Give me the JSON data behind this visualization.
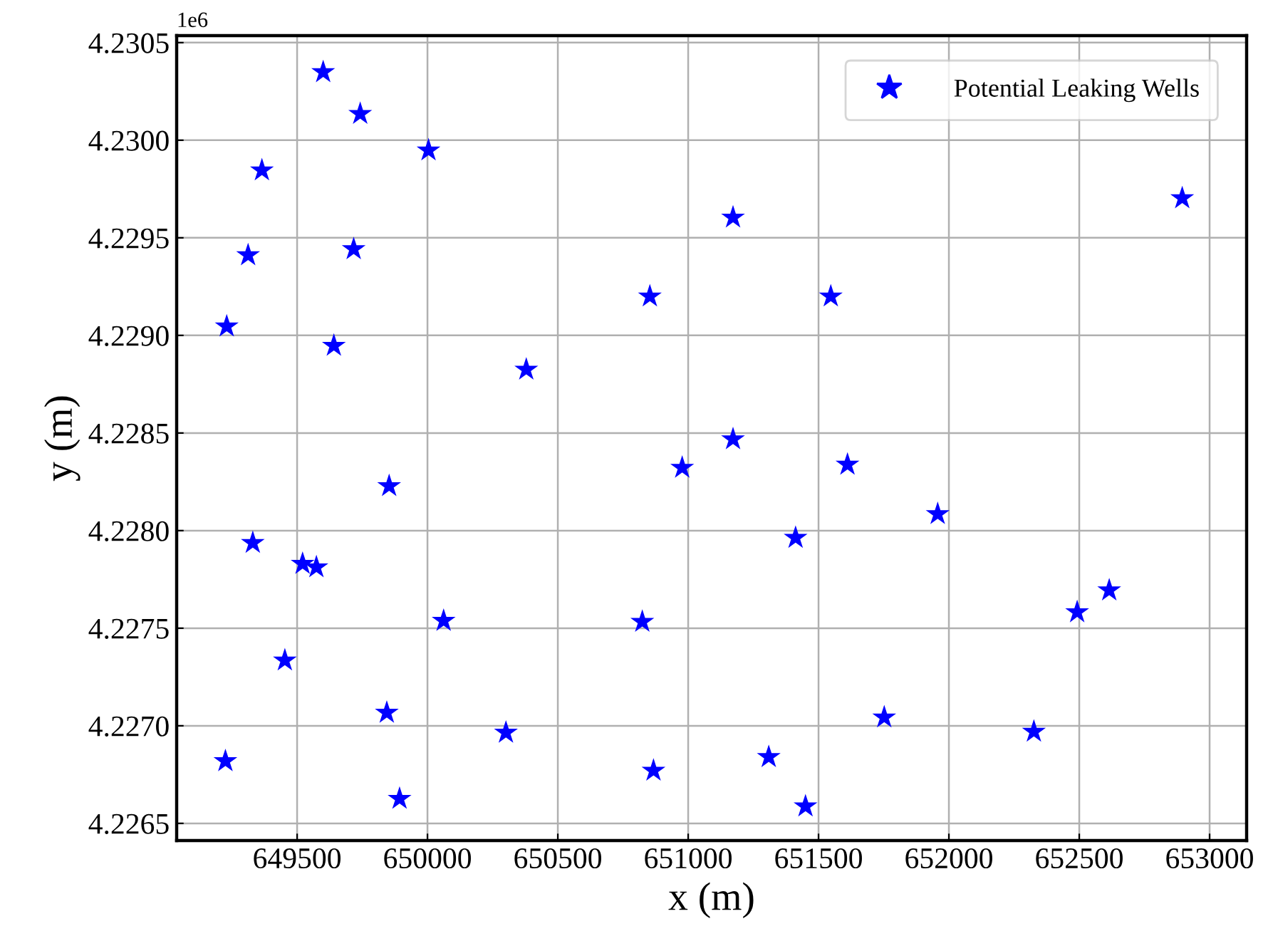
{
  "chart_data": {
    "type": "scatter",
    "xlabel": "x (m)",
    "ylabel": "y (m)",
    "annotations": [
      "1e6"
    ],
    "series": [
      {
        "name": "Potential Leaking Wells",
        "color": "#0000ff",
        "marker": "star",
        "x": [
          649600,
          649742,
          650004,
          649365,
          649312,
          649717,
          649230,
          649641,
          650379,
          650853,
          651172,
          651172,
          650977,
          649853,
          649330,
          649521,
          649574,
          650062,
          650824,
          649453,
          649844,
          650301,
          649225,
          649893,
          650867,
          651547,
          652895,
          651611,
          651957,
          651412,
          652615,
          652492,
          651752,
          652326,
          651309,
          651450
        ],
        "values": [
          4.230349,
          4.230135,
          4.229948,
          4.229846,
          4.229411,
          4.229442,
          4.229046,
          4.228947,
          4.228825,
          4.2292,
          4.229604,
          4.228468,
          4.228322,
          4.228228,
          4.227937,
          4.22783,
          4.227812,
          4.227538,
          4.227533,
          4.227335,
          4.227067,
          4.226965,
          4.226819,
          4.226626,
          4.22677,
          4.2292,
          4.229703,
          4.228338,
          4.228085,
          4.227963,
          4.227694,
          4.227582,
          4.227043,
          4.22697,
          4.22684,
          4.226587
        ]
      }
    ],
    "xlim": [
      649038,
      653142
    ],
    "ylim": [
      4.226412,
      4.230536
    ],
    "xticks": [
      649500,
      650000,
      650500,
      651000,
      651500,
      652000,
      652500,
      653000
    ],
    "yticks": [
      4.2265,
      {
        "value": 4.227,
        "label": "4.2270"
      },
      4.2275,
      {
        "value": 4.228,
        "label": "4.2280"
      },
      4.2285,
      {
        "value": 4.229,
        "label": "4.2290"
      },
      4.2295,
      {
        "value": 4.23,
        "label": "4.2300"
      },
      4.2305
    ],
    "grid": true,
    "legend": "top right"
  }
}
